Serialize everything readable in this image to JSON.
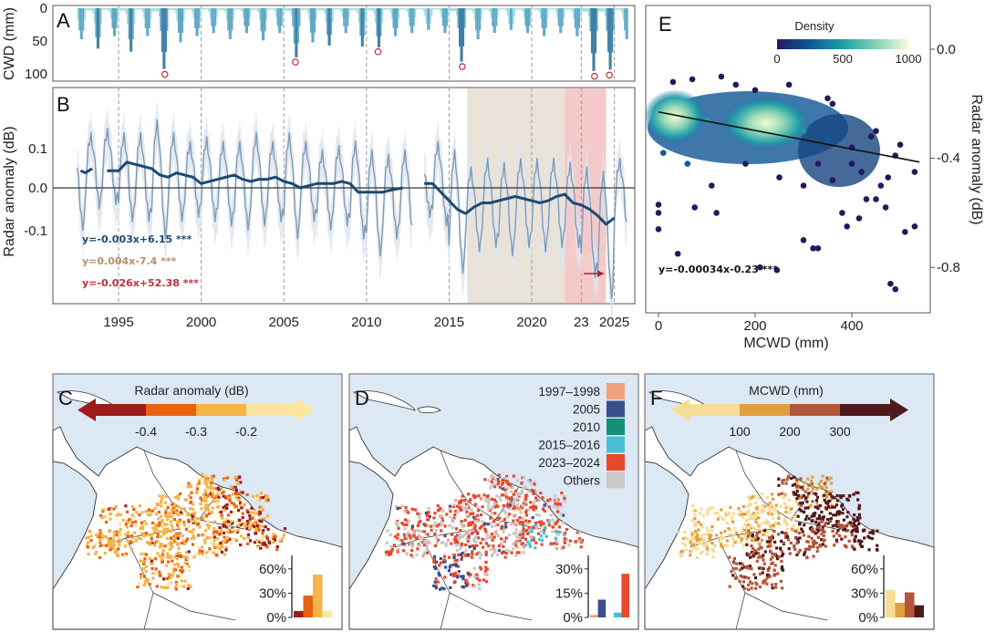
{
  "chart_data": [
    {
      "panel": "A",
      "type": "bar",
      "ylabel": "CWD (mm)",
      "ylim": [
        0,
        110
      ],
      "y_inverted": true,
      "yticks": [
        "0",
        "50",
        "100"
      ],
      "x_range": [
        1992.5,
        2025.8
      ],
      "annual_peak_cwd": {
        "years": [
          1992,
          1993,
          1994,
          1995,
          1996,
          1997,
          1998,
          1999,
          2000,
          2001,
          2002,
          2003,
          2004,
          2005,
          2006,
          2007,
          2008,
          2009,
          2010,
          2011,
          2012,
          2013,
          2014,
          2015,
          2016,
          2017,
          2018,
          2019,
          2020,
          2021,
          2022,
          2023,
          2024,
          2025
        ],
        "values": [
          50,
          65,
          45,
          70,
          45,
          98,
          55,
          45,
          40,
          50,
          40,
          52,
          40,
          79,
          55,
          60,
          40,
          62,
          63,
          45,
          40,
          35,
          40,
          86,
          50,
          40,
          35,
          40,
          45,
          40,
          45,
          101,
          99,
          50
        ]
      },
      "marked_extremes": [
        [
          1997.8,
          98
        ],
        [
          2005.7,
          79
        ],
        [
          2010.7,
          63
        ],
        [
          2015.8,
          86
        ],
        [
          2023.8,
          101
        ],
        [
          2024.7,
          99
        ]
      ],
      "bar_colors": {
        "light": "#a8dce0",
        "dark": "#3f7fa6"
      },
      "marker_color": "#c0303a"
    },
    {
      "panel": "B",
      "type": "line",
      "ylabel": "Radar anomaly (dB)",
      "ylim": [
        -0.27,
        0.23
      ],
      "yticks": [
        "0.1",
        "0.0",
        "-0.1"
      ],
      "xticks": [
        "1995",
        "2000",
        "2005",
        "2010",
        "2015",
        "2020",
        "23",
        "2025"
      ],
      "xtick_values": [
        1995,
        2000,
        2005,
        2010,
        2015,
        2020,
        2023,
        2025
      ],
      "grid": "vertical dashed",
      "shaded_periods": [
        {
          "from": 2016.1,
          "to": 2022.0,
          "color": "#e9e2d8"
        },
        {
          "from": 2022.0,
          "to": 2024.5,
          "color": "#f4c9c9"
        }
      ],
      "seasonal_series": {
        "color": "#7d9bb5",
        "years": [
          1992,
          1993,
          1994,
          1995,
          1996,
          1997,
          1998,
          1999,
          2000,
          2001,
          2002,
          2003,
          2004,
          2005,
          2006,
          2007,
          2008,
          2009,
          2010,
          2011,
          2012,
          2013,
          2014,
          2015,
          2016,
          2017,
          2018,
          2019,
          2020,
          2021,
          2022,
          2023,
          2024,
          2025
        ],
        "annual_max": [
          0.09,
          0.12,
          0.13,
          0.12,
          0.12,
          0.15,
          0.12,
          0.1,
          0.11,
          0.1,
          0.1,
          0.12,
          0.1,
          0.12,
          0.1,
          0.08,
          0.09,
          0.1,
          0.08,
          0.07,
          0.08,
          0.06,
          0.1,
          0.08,
          0.04,
          0.06,
          0.05,
          0.06,
          0.06,
          0.06,
          0.05,
          0.04,
          0.03,
          0.06
        ],
        "annual_min": [
          -0.08,
          -0.03,
          -0.02,
          -0.06,
          -0.06,
          -0.1,
          -0.06,
          -0.05,
          -0.06,
          -0.07,
          -0.08,
          -0.07,
          -0.06,
          -0.1,
          -0.06,
          -0.08,
          -0.07,
          -0.1,
          -0.14,
          -0.1,
          -0.11,
          -0.05,
          -0.07,
          -0.18,
          -0.13,
          -0.12,
          -0.14,
          -0.12,
          -0.13,
          -0.12,
          -0.12,
          -0.19,
          -0.24,
          -0.1
        ]
      },
      "trend_series": {
        "color": "#1c4a72",
        "x": [
          1992.7,
          1993.0,
          1993.4,
          null,
          1994.3,
          1995.0,
          1995.5,
          1996.0,
          1996.5,
          1997.0,
          1997.5,
          1998.0,
          1998.5,
          1999.0,
          1999.5,
          2000.0,
          2000.5,
          2001.0,
          2001.5,
          2002.0,
          2002.5,
          2003.0,
          2003.5,
          2004.0,
          2004.5,
          2005.0,
          2005.5,
          2006.0,
          2006.5,
          2007.0,
          2007.5,
          2008.0,
          2008.5,
          2009.0,
          2009.5,
          2010.0,
          2010.5,
          2011.0,
          2011.5,
          2012.2,
          null,
          2013.5,
          2014.0,
          2014.5,
          2015.0,
          2015.5,
          2016.0,
          2016.5,
          2017.0,
          2017.5,
          2018.0,
          2018.5,
          2019.0,
          2019.5,
          2020.0,
          2020.5,
          2021.0,
          2021.5,
          2022.0,
          2022.5,
          2023.0,
          2023.5,
          2024.0,
          2024.5,
          2025.0
        ],
        "y": [
          0.04,
          0.035,
          0.045,
          null,
          0.04,
          0.04,
          0.06,
          0.055,
          0.05,
          0.045,
          0.03,
          0.025,
          0.035,
          0.03,
          0.025,
          0.01,
          0.015,
          0.02,
          0.025,
          0.03,
          0.02,
          0.015,
          0.02,
          0.02,
          0.025,
          0.015,
          0.01,
          0.0,
          0.005,
          0.01,
          0.01,
          0.01,
          0.015,
          0.01,
          -0.01,
          -0.01,
          -0.01,
          -0.01,
          -0.005,
          0.0,
          null,
          0.01,
          0.01,
          -0.01,
          -0.03,
          -0.05,
          -0.06,
          -0.045,
          -0.035,
          -0.035,
          -0.03,
          -0.025,
          -0.02,
          -0.025,
          -0.03,
          -0.035,
          -0.03,
          -0.02,
          -0.015,
          -0.035,
          -0.04,
          -0.05,
          -0.065,
          -0.085,
          -0.07
        ]
      },
      "annotations": [
        {
          "text": "y=-0.003x+6.15 ***",
          "color": "#1c4a72"
        },
        {
          "text": "y=0.004x-7.4 ***",
          "color": "#b5916a"
        },
        {
          "text": "y=-0.026x+52.38 ***",
          "color": "#c0303a"
        }
      ],
      "arrow_color": "#b02035"
    },
    {
      "panel": "E",
      "type": "scatter",
      "xlabel": "MCWD (mm)",
      "ylabel": "Radar anomaly (dB)",
      "xlim": [
        -20,
        560
      ],
      "ylim": [
        -0.97,
        0.18
      ],
      "xticks": [
        "0",
        "200",
        "400"
      ],
      "yticks": [
        "0.0",
        "-0.4",
        "-0.8"
      ],
      "colorbar": {
        "title": "Density",
        "ticks": [
          "0",
          "500",
          "1000"
        ],
        "range": [
          0,
          1000
        ]
      },
      "regression": {
        "slope": -0.00034,
        "intercept": -0.23,
        "label": "y=-0.00034x-0.23 ***"
      },
      "points": [
        [
          20,
          -0.25,
          1000
        ],
        [
          40,
          -0.27,
          950
        ],
        [
          220,
          -0.28,
          900
        ],
        [
          250,
          -0.3,
          850
        ],
        [
          150,
          -0.27,
          600
        ],
        [
          100,
          -0.26,
          500
        ],
        [
          300,
          -0.3,
          500
        ],
        [
          350,
          -0.33,
          350
        ],
        [
          400,
          -0.36,
          200
        ],
        [
          0,
          -0.57,
          20
        ],
        [
          0,
          -0.6,
          20
        ],
        [
          0,
          -0.66,
          20
        ],
        [
          40,
          -0.75,
          10
        ],
        [
          110,
          -0.5,
          20
        ],
        [
          120,
          -0.6,
          15
        ],
        [
          75,
          -0.58,
          15
        ],
        [
          210,
          -0.8,
          10
        ],
        [
          245,
          -0.81,
          10
        ],
        [
          300,
          -0.7,
          15
        ],
        [
          320,
          -0.73,
          15
        ],
        [
          330,
          -0.73,
          15
        ],
        [
          480,
          -0.86,
          5
        ],
        [
          490,
          -0.88,
          5
        ],
        [
          530,
          -0.65,
          5
        ],
        [
          510,
          -0.67,
          5
        ],
        [
          530,
          -0.45,
          10
        ],
        [
          490,
          -0.39,
          10
        ],
        [
          500,
          -0.35,
          10
        ],
        [
          475,
          -0.47,
          10
        ],
        [
          450,
          -0.3,
          20
        ],
        [
          440,
          -0.32,
          20
        ],
        [
          350,
          -0.18,
          50
        ],
        [
          360,
          -0.2,
          60
        ],
        [
          30,
          -0.12,
          30
        ],
        [
          70,
          -0.11,
          30
        ],
        [
          130,
          -0.1,
          30
        ],
        [
          160,
          -0.13,
          40
        ],
        [
          270,
          -0.13,
          30
        ],
        [
          200,
          -0.15,
          80
        ],
        [
          420,
          -0.45,
          80
        ],
        [
          430,
          -0.55,
          50
        ],
        [
          380,
          -0.6,
          60
        ],
        [
          390,
          -0.65,
          40
        ],
        [
          460,
          -0.5,
          40
        ],
        [
          300,
          -0.5,
          100
        ],
        [
          250,
          -0.47,
          150
        ],
        [
          180,
          -0.42,
          200
        ],
        [
          60,
          -0.42,
          300
        ],
        [
          10,
          -0.38,
          400
        ],
        [
          400,
          -0.42,
          200
        ],
        [
          360,
          -0.48,
          150
        ],
        [
          330,
          -0.42,
          200
        ],
        [
          470,
          -0.58,
          30
        ],
        [
          450,
          -0.55,
          40
        ],
        [
          415,
          -0.62,
          50
        ]
      ]
    },
    {
      "panel": "C",
      "type": "bar",
      "legend_title": "Radar anomaly (dB)",
      "legend_ticks": [
        "-0.4",
        "-0.3",
        "-0.2"
      ],
      "class_colors": [
        "#9e1c1c",
        "#e8620f",
        "#f5b547",
        "#fde5a0"
      ],
      "yticks": [
        "0%",
        "30%",
        "60%"
      ],
      "ylim": [
        0,
        70
      ],
      "values": [
        8,
        27,
        53,
        8
      ]
    },
    {
      "panel": "D",
      "type": "bar",
      "legend": [
        {
          "label": "1997–1998",
          "color": "#f3a07f"
        },
        {
          "label": "2005",
          "color": "#3a4e8c"
        },
        {
          "label": "2010",
          "color": "#168f76"
        },
        {
          "label": "2015–2016",
          "color": "#4bbfd6"
        },
        {
          "label": "2023–2024",
          "color": "#e8482c"
        },
        {
          "label": "Others",
          "color": "#c8c8c8"
        }
      ],
      "yticks": [
        "0%",
        "15%",
        "30%"
      ],
      "ylim": [
        0,
        35
      ],
      "values": [
        1.5,
        11,
        0,
        3,
        27
      ]
    },
    {
      "panel": "F",
      "type": "bar",
      "legend_title": "MCWD (mm)",
      "legend_ticks": [
        "100",
        "200",
        "300"
      ],
      "class_colors": [
        "#f7dc98",
        "#e0a040",
        "#b5553a",
        "#4e1a1c"
      ],
      "yticks": [
        "0%",
        "30%",
        "60%"
      ],
      "ylim": [
        0,
        70
      ],
      "values": [
        34,
        18,
        31,
        15
      ]
    }
  ],
  "panel_labels": {
    "a": "A",
    "b": "B",
    "c": "C",
    "d": "D",
    "e": "E",
    "f": "F"
  },
  "colors": {
    "ocean": "#dce8f3",
    "land": "#ffffff",
    "coast": "#333333"
  }
}
